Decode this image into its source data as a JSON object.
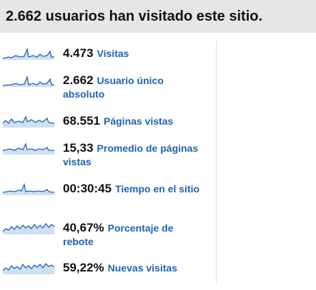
{
  "header": {
    "title": "2.662 usuarios han visitado este sitio."
  },
  "stats": [
    {
      "value": "4.473",
      "label": "Visitas"
    },
    {
      "value": "2.662",
      "label": "Usuario único absoluto"
    },
    {
      "value": "68.551",
      "label": "Páginas vistas"
    },
    {
      "value": "15,33",
      "label": "Promedio de páginas vistas"
    },
    {
      "value": "00:30:45",
      "label": "Tiempo en el sitio"
    },
    {
      "value": "40,67%",
      "label": "Porcentaje de rebote"
    },
    {
      "value": "59,22%",
      "label": "Nuevas visitas"
    }
  ]
}
